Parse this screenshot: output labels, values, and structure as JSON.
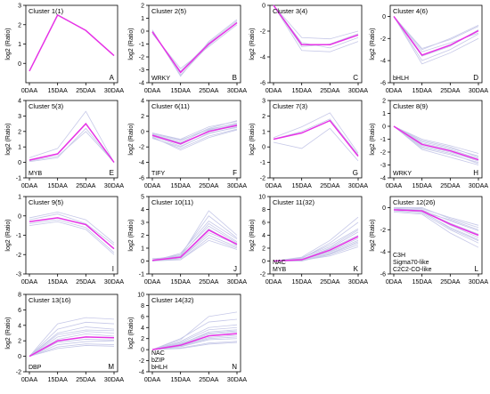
{
  "x_categories": [
    "0DAA",
    "15DAA",
    "25DAA",
    "30DAA"
  ],
  "y_axis_label": "log2 (Ratio)",
  "chart_data": [
    {
      "type": "line",
      "title": "Cluster 1(1)",
      "panel_letter": "A",
      "genes": [],
      "ylim": [
        -1,
        3
      ],
      "yticks": [
        0,
        1,
        2,
        3
      ],
      "series": [
        {
          "values": [
            -0.4,
            2.5,
            1.7,
            0.4
          ]
        }
      ],
      "background_lines": []
    },
    {
      "type": "line",
      "title": "Cluster 2(5)",
      "panel_letter": "B",
      "genes": [
        "WRKY"
      ],
      "ylim": [
        -4,
        2
      ],
      "yticks": [
        -4,
        -3,
        -2,
        -1,
        0,
        1,
        2
      ],
      "series": [
        {
          "values": [
            -0.05,
            -3.2,
            -1.0,
            0.65
          ]
        }
      ],
      "background_lines": [
        [
          0.1,
          -3.5,
          -0.8,
          0.9
        ],
        [
          -0.2,
          -2.9,
          -1.2,
          0.5
        ],
        [
          0,
          -3.4,
          -1.1,
          0.7
        ],
        [
          -0.1,
          -3.1,
          -0.9,
          0.8
        ]
      ]
    },
    {
      "type": "line",
      "title": "Cluster 3(4)",
      "panel_letter": "C",
      "genes": [],
      "ylim": [
        -6,
        0
      ],
      "yticks": [
        -6,
        -4,
        -2,
        0
      ],
      "series": [
        {
          "values": [
            0,
            -3.05,
            -3.05,
            -2.3
          ]
        }
      ],
      "background_lines": [
        [
          0,
          -2.5,
          -2.6,
          -2.0
        ],
        [
          0,
          -3.5,
          -3.6,
          -2.8
        ],
        [
          0,
          -3.2,
          -3.0,
          -2.2
        ],
        [
          0,
          -2.9,
          -3.3,
          -2.5
        ]
      ]
    },
    {
      "type": "line",
      "title": "Cluster 4(6)",
      "panel_letter": "D",
      "genes": [
        "bHLH"
      ],
      "ylim": [
        -6,
        1
      ],
      "yticks": [
        -6,
        -4,
        -2,
        0
      ],
      "series": [
        {
          "values": [
            0,
            -3.5,
            -2.6,
            -1.3
          ]
        }
      ],
      "background_lines": [
        [
          0,
          -3.0,
          -2.0,
          -0.8
        ],
        [
          0,
          -4.0,
          -3.0,
          -1.6
        ],
        [
          0,
          -3.2,
          -2.4,
          -1.5
        ],
        [
          0,
          -4.3,
          -3.3,
          -2.0
        ],
        [
          0,
          -3.6,
          -2.7,
          -1.2
        ],
        [
          0,
          -2.9,
          -2.1,
          -0.9
        ]
      ]
    },
    {
      "type": "line",
      "title": "Cluster 5(3)",
      "panel_letter": "E",
      "genes": [
        "MYB"
      ],
      "ylim": [
        -1,
        4
      ],
      "yticks": [
        -1,
        0,
        1,
        2,
        3,
        4
      ],
      "series": [
        {
          "values": [
            0.15,
            0.55,
            2.5,
            0
          ]
        }
      ],
      "background_lines": [
        [
          0.3,
          0.9,
          3.3,
          0
        ],
        [
          0.1,
          0.4,
          2.0,
          0
        ],
        [
          0.05,
          0.3,
          2.2,
          0
        ]
      ]
    },
    {
      "type": "line",
      "title": "Cluster 6(11)",
      "panel_letter": "F",
      "genes": [
        "TIFY"
      ],
      "ylim": [
        -6,
        4
      ],
      "yticks": [
        -6,
        -4,
        -2,
        0,
        2,
        4
      ],
      "series": [
        {
          "values": [
            -0.5,
            -1.6,
            0,
            0.8
          ]
        }
      ],
      "background_lines": [
        [
          -0.2,
          -1.0,
          0.6,
          1.3
        ],
        [
          -0.8,
          -2.2,
          -0.6,
          0.3
        ],
        [
          -0.4,
          -1.4,
          0.3,
          1.0
        ],
        [
          -0.6,
          -1.9,
          -0.3,
          0.6
        ],
        [
          -0.3,
          -1.2,
          0.4,
          1.4
        ],
        [
          -0.7,
          -2.4,
          -0.8,
          0.2
        ],
        [
          -0.5,
          -1.7,
          0.1,
          0.9
        ],
        [
          -0.4,
          -1.5,
          0,
          0.7
        ],
        [
          -0.9,
          -2.0,
          -0.2,
          0.5
        ],
        [
          -0.2,
          -1.1,
          0.2,
          1.1
        ]
      ]
    },
    {
      "type": "line",
      "title": "Cluster 7(3)",
      "panel_letter": "G",
      "genes": [],
      "ylim": [
        -2,
        3
      ],
      "yticks": [
        -2,
        -1,
        0,
        1,
        2,
        3
      ],
      "series": [
        {
          "values": [
            0.5,
            0.9,
            1.7,
            -0.6
          ]
        }
      ],
      "background_lines": [
        [
          0.6,
          1.3,
          2.2,
          -0.4
        ],
        [
          0.3,
          -0.1,
          1.2,
          -0.9
        ],
        [
          0.5,
          1.0,
          1.8,
          -0.5
        ]
      ]
    },
    {
      "type": "line",
      "title": "Cluster 8(9)",
      "panel_letter": "H",
      "genes": [
        "WRKY"
      ],
      "ylim": [
        -4,
        2
      ],
      "yticks": [
        -4,
        -3,
        -2,
        -1,
        0,
        1,
        2
      ],
      "series": [
        {
          "values": [
            0,
            -1.4,
            -1.9,
            -2.6
          ]
        }
      ],
      "background_lines": [
        [
          0,
          -1.0,
          -1.5,
          -2.1
        ],
        [
          0,
          -1.8,
          -2.4,
          -3.0
        ],
        [
          0,
          -1.2,
          -1.7,
          -2.3
        ],
        [
          0,
          -1.6,
          -2.1,
          -2.9
        ],
        [
          0,
          -1.3,
          -1.8,
          -2.5
        ],
        [
          0,
          -1.5,
          -2.0,
          -2.7
        ],
        [
          0,
          -1.1,
          -1.6,
          -2.4
        ],
        [
          0,
          -1.7,
          -2.2,
          -2.8
        ]
      ]
    },
    {
      "type": "line",
      "title": "Cluster 9(5)",
      "panel_letter": "I",
      "genes": [],
      "ylim": [
        -3,
        1
      ],
      "yticks": [
        -3,
        -2,
        -1,
        0,
        1
      ],
      "series": [
        {
          "values": [
            -0.3,
            -0.1,
            -0.45,
            -1.7
          ]
        }
      ],
      "background_lines": [
        [
          -0.1,
          0.2,
          -0.2,
          -1.4
        ],
        [
          -0.5,
          -0.3,
          -0.7,
          -2.0
        ],
        [
          -0.2,
          0.1,
          -0.4,
          -1.5
        ],
        [
          -0.4,
          -0.2,
          -0.6,
          -1.9
        ]
      ]
    },
    {
      "type": "line",
      "title": "Cluster 10(11)",
      "panel_letter": "J",
      "genes": [],
      "ylim": [
        -1,
        5
      ],
      "yticks": [
        -1,
        0,
        1,
        2,
        3,
        4,
        5
      ],
      "series": [
        {
          "values": [
            0.05,
            0.3,
            2.4,
            1.3
          ]
        }
      ],
      "background_lines": [
        [
          0,
          0.5,
          3.5,
          1.8
        ],
        [
          0.1,
          0.1,
          1.6,
          0.9
        ],
        [
          0,
          0.4,
          2.9,
          1.5
        ],
        [
          0.1,
          0.2,
          2.0,
          1.1
        ],
        [
          0,
          0.6,
          3.1,
          1.7
        ],
        [
          0.2,
          0.3,
          2.5,
          1.2
        ],
        [
          0,
          0.1,
          1.8,
          1.0
        ],
        [
          0.1,
          0.5,
          2.7,
          1.4
        ],
        [
          0,
          0.2,
          2.2,
          1.3
        ],
        [
          0.1,
          0.4,
          3.9,
          2.0
        ]
      ]
    },
    {
      "type": "line",
      "title": "Cluster 11(32)",
      "panel_letter": "K",
      "genes": [
        "NAC",
        "MYB"
      ],
      "ylim": [
        -2,
        10
      ],
      "yticks": [
        -2,
        0,
        2,
        4,
        6,
        8,
        10
      ],
      "series": [
        {
          "values": [
            0,
            0.2,
            1.7,
            3.8
          ]
        }
      ],
      "background_lines": [
        [
          0,
          0.5,
          2.5,
          5.0
        ],
        [
          0,
          0.1,
          1.2,
          3.0
        ],
        [
          0,
          0.3,
          2.0,
          4.5
        ],
        [
          0,
          0.0,
          1.0,
          2.5
        ],
        [
          0,
          0.4,
          2.8,
          6.0
        ],
        [
          0,
          0.2,
          1.5,
          3.5
        ],
        [
          0,
          0.6,
          3.2,
          6.8
        ],
        [
          0,
          0.1,
          0.8,
          2.2
        ],
        [
          0,
          0.3,
          1.9,
          4.0
        ],
        [
          0,
          0.2,
          1.4,
          3.2
        ],
        [
          0,
          0.5,
          2.2,
          4.8
        ],
        [
          0,
          0.0,
          1.1,
          2.8
        ]
      ]
    },
    {
      "type": "line",
      "title": "Cluster 12(26)",
      "panel_letter": "L",
      "genes": [
        "C3H",
        "Sigma70-like",
        "C2C2-CO-like"
      ],
      "ylim": [
        -6,
        1
      ],
      "yticks": [
        -6,
        -4,
        -2,
        0
      ],
      "series": [
        {
          "values": [
            -0.2,
            -0.3,
            -1.5,
            -2.5
          ]
        }
      ],
      "background_lines": [
        [
          0,
          0,
          -1.0,
          -1.8
        ],
        [
          -0.3,
          -0.5,
          -2.0,
          -3.2
        ],
        [
          -0.1,
          -0.2,
          -1.2,
          -2.1
        ],
        [
          -0.2,
          -0.4,
          -1.8,
          -2.9
        ],
        [
          0,
          -0.1,
          -0.9,
          -1.6
        ],
        [
          -0.4,
          -0.6,
          -2.3,
          -3.6
        ],
        [
          -0.1,
          -0.3,
          -1.4,
          -2.4
        ],
        [
          -0.2,
          -0.2,
          -1.6,
          -2.7
        ],
        [
          0,
          -0.4,
          -1.1,
          -2.0
        ],
        [
          -0.3,
          -0.3,
          -1.9,
          -3.0
        ]
      ]
    },
    {
      "type": "line",
      "title": "Cluster 13(16)",
      "panel_letter": "M",
      "genes": [
        "DBP"
      ],
      "ylim": [
        -2,
        8
      ],
      "yticks": [
        -2,
        0,
        2,
        4,
        6,
        8
      ],
      "series": [
        {
          "values": [
            0,
            2.0,
            2.5,
            2.4
          ]
        }
      ],
      "background_lines": [
        [
          0,
          3.0,
          3.8,
          3.5
        ],
        [
          0,
          1.2,
          1.6,
          1.5
        ],
        [
          0,
          2.5,
          3.2,
          3.0
        ],
        [
          0,
          1.5,
          1.9,
          2.0
        ],
        [
          0,
          3.5,
          4.4,
          4.2
        ],
        [
          0,
          1.8,
          2.2,
          2.1
        ],
        [
          0,
          2.8,
          3.4,
          3.3
        ],
        [
          0,
          1.0,
          1.4,
          1.3
        ],
        [
          0,
          2.2,
          2.9,
          2.6
        ],
        [
          0,
          4.2,
          5.0,
          4.8
        ]
      ]
    },
    {
      "type": "line",
      "title": "Cluster 14(32)",
      "panel_letter": "N",
      "genes": [
        "NAC",
        "bZIP",
        "bHLH"
      ],
      "ylim": [
        -4,
        10
      ],
      "yticks": [
        -4,
        -2,
        0,
        2,
        4,
        6,
        8,
        10
      ],
      "series": [
        {
          "values": [
            0,
            0.8,
            2.5,
            2.9
          ]
        }
      ],
      "background_lines": [
        [
          0,
          1.5,
          4.0,
          4.5
        ],
        [
          0,
          0.3,
          1.2,
          1.5
        ],
        [
          0,
          1.0,
          3.2,
          3.6
        ],
        [
          0,
          0.5,
          1.8,
          2.0
        ],
        [
          0,
          2.0,
          5.0,
          5.5
        ],
        [
          0,
          0.7,
          2.2,
          2.6
        ],
        [
          0,
          1.3,
          3.6,
          4.0
        ],
        [
          0,
          0.2,
          1.0,
          1.3
        ],
        [
          0,
          0.9,
          2.8,
          3.2
        ],
        [
          0,
          1.8,
          6.0,
          6.8
        ],
        [
          0,
          0.6,
          2.0,
          2.3
        ],
        [
          0,
          1.1,
          3.0,
          3.4
        ]
      ]
    }
  ],
  "colors": {
    "mean_line": "#e633e6",
    "member_line": "#c6c8e8",
    "axis": "#000000"
  }
}
